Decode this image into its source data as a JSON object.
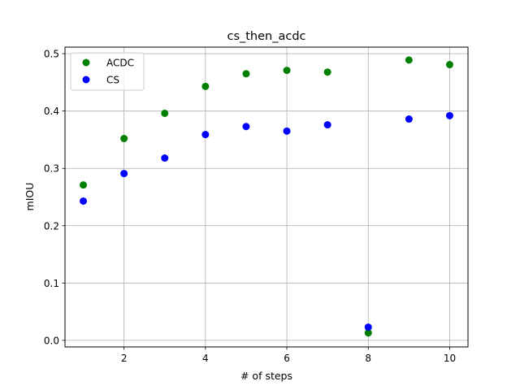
{
  "chart_data": {
    "type": "scatter",
    "title": "cs_then_acdc",
    "xlabel": "# of steps",
    "ylabel": "mIOU",
    "xlim": [
      0.55,
      10.45
    ],
    "ylim": [
      -0.0115,
      0.5115
    ],
    "grid": true,
    "legend_position": "top-left",
    "x_ticks": [
      2,
      4,
      6,
      8,
      10
    ],
    "x_tick_labels": [
      "2",
      "4",
      "6",
      "8",
      "10"
    ],
    "y_ticks": [
      0.0,
      0.1,
      0.2,
      0.3,
      0.4,
      0.5
    ],
    "y_tick_labels": [
      "0.0",
      "0.1",
      "0.2",
      "0.3",
      "0.4",
      "0.5"
    ],
    "x": [
      1,
      2,
      3,
      4,
      5,
      6,
      7,
      8,
      9,
      10
    ],
    "series": [
      {
        "name": "ACDC",
        "color": "#008000",
        "values": [
          0.271,
          0.352,
          0.396,
          0.443,
          0.465,
          0.471,
          0.468,
          0.013,
          0.489,
          0.481
        ]
      },
      {
        "name": "CS",
        "color": "#0000ff",
        "values": [
          0.243,
          0.291,
          0.318,
          0.359,
          0.373,
          0.365,
          0.376,
          0.023,
          0.386,
          0.392
        ]
      }
    ]
  }
}
